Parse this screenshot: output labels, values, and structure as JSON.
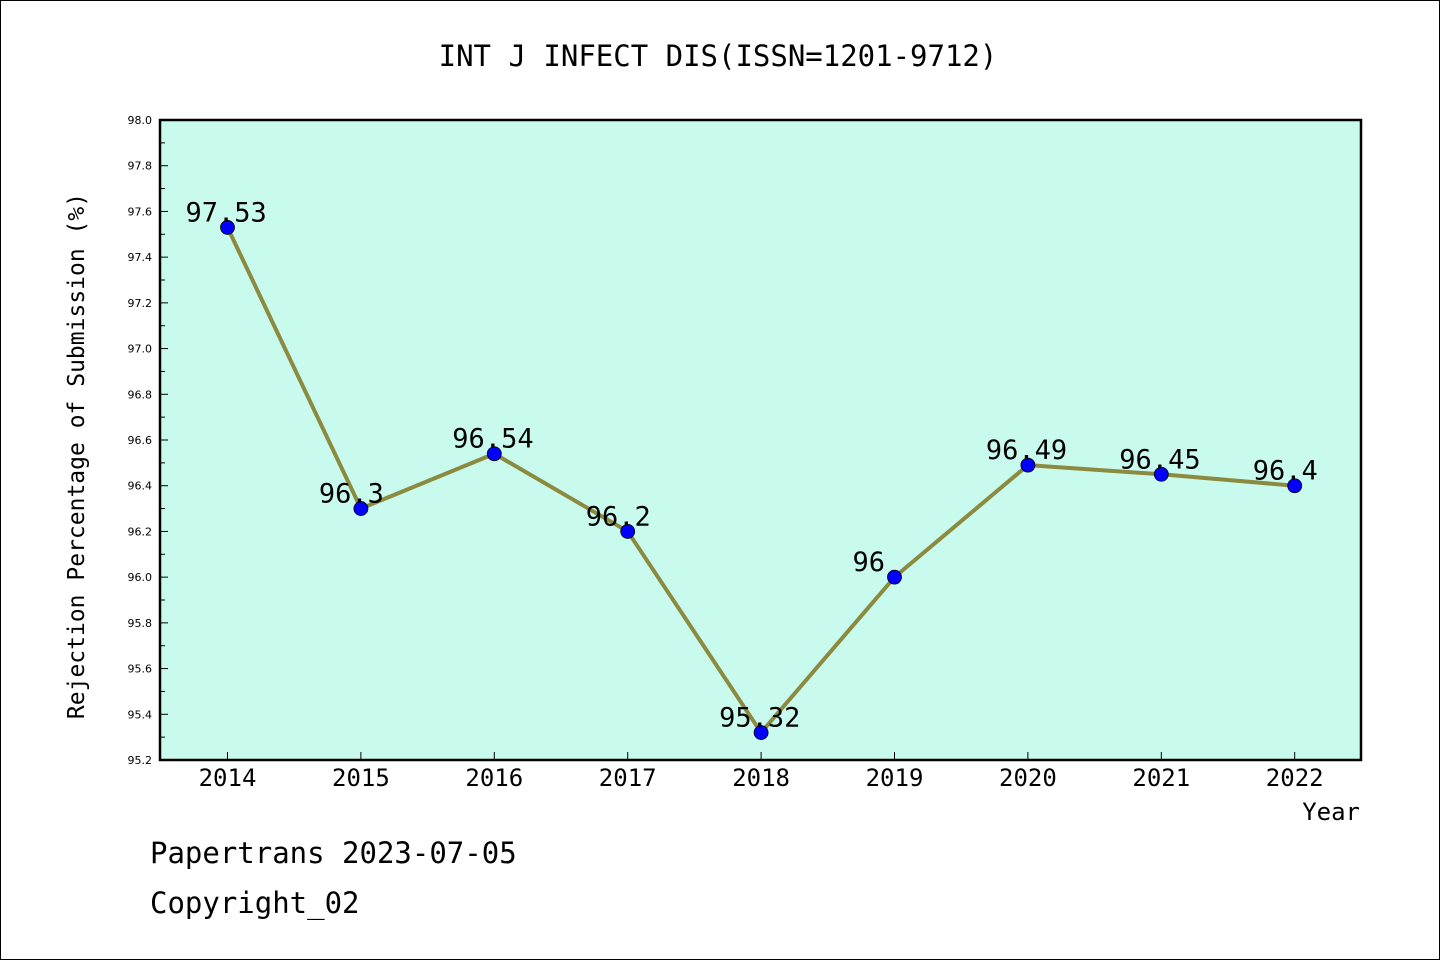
{
  "footer": {
    "line1": "Papertrans 2023-07-05",
    "line2": "Copyright_02"
  },
  "chart_data": {
    "type": "line",
    "title": "INT J INFECT DIS(ISSN=1201-9712)",
    "xlabel": "Year",
    "ylabel": "Rejection Percentage of Submission (%)",
    "categories": [
      "2014",
      "2015",
      "2016",
      "2017",
      "2018",
      "2019",
      "2020",
      "2021",
      "2022"
    ],
    "values": [
      97.53,
      96.3,
      96.54,
      96.2,
      95.32,
      96.0,
      96.49,
      96.45,
      96.4
    ],
    "point_labels": [
      "97.53",
      "96.3",
      "96.54",
      "96.2",
      "95.32",
      "96",
      "96.49",
      "96.45",
      "96.4"
    ],
    "ylim": [
      95.2,
      98.0
    ],
    "yticks": [
      "95.2",
      "95.4",
      "95.6",
      "95.8",
      "96.0",
      "96.2",
      "96.4",
      "96.6",
      "96.8",
      "97.0",
      "97.2",
      "97.4",
      "97.6",
      "97.8",
      "98.0"
    ],
    "grid": false,
    "colors": {
      "plot_background": "#c8fbee",
      "line": "#8b8a3e",
      "marker": "#0000ff"
    }
  }
}
